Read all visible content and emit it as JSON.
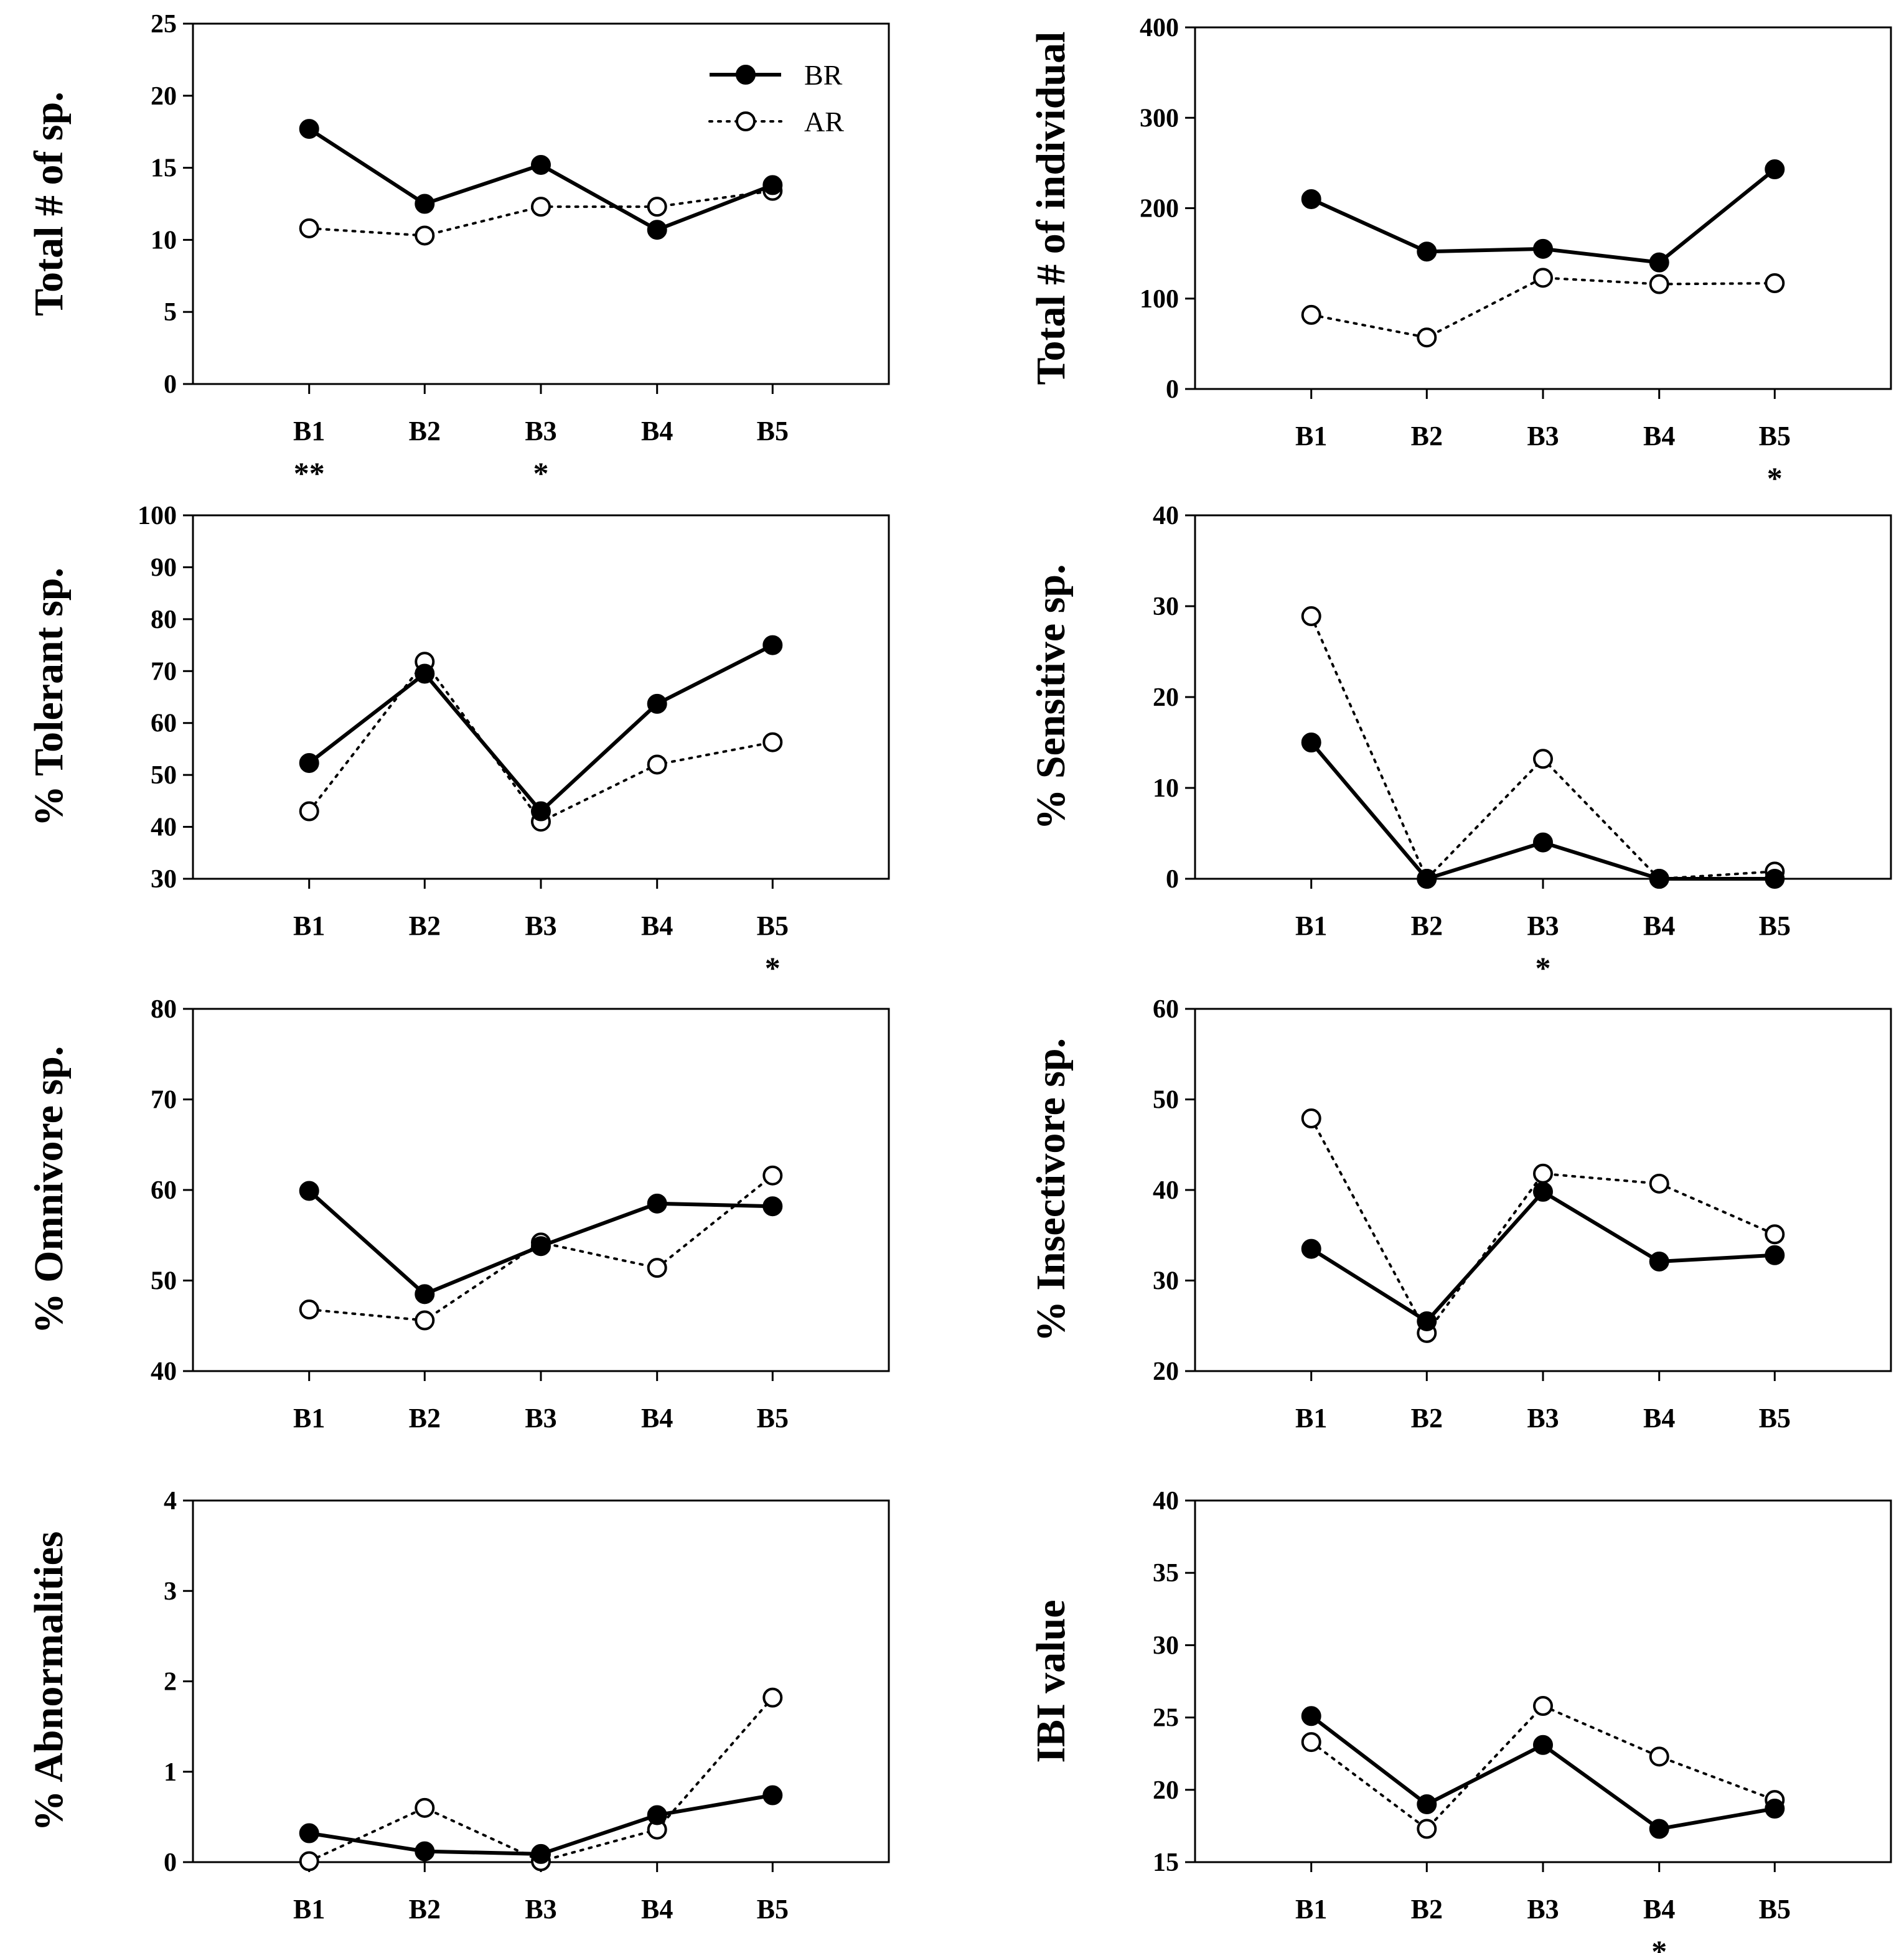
{
  "series_styles": {
    "BR": {
      "marker": "filled-circle",
      "line": "solid",
      "color": "#000000"
    },
    "AR": {
      "marker": "open-circle",
      "line": "dotted",
      "color": "#000000"
    }
  },
  "legend": {
    "items": [
      "BR",
      "AR"
    ],
    "position": "top-right of first panel"
  },
  "chart_data": [
    {
      "type": "line",
      "ylabel": "Total # of sp.",
      "categories": [
        "B1",
        "B2",
        "B3",
        "B4",
        "B5"
      ],
      "ylim": [
        0,
        25
      ],
      "yticks": [
        0,
        5,
        10,
        15,
        20,
        25
      ],
      "series": [
        {
          "name": "BR",
          "values": [
            17.7,
            12.5,
            15.2,
            10.7,
            13.8
          ]
        },
        {
          "name": "AR",
          "values": [
            10.8,
            10.3,
            12.3,
            12.3,
            13.4
          ]
        }
      ],
      "significance": [
        "**",
        "",
        "*",
        "",
        ""
      ]
    },
    {
      "type": "line",
      "ylabel": "Total # of individual",
      "categories": [
        "B1",
        "B2",
        "B3",
        "B4",
        "B5"
      ],
      "ylim": [
        0,
        400
      ],
      "yticks": [
        0,
        100,
        200,
        300,
        400
      ],
      "series": [
        {
          "name": "BR",
          "values": [
            210,
            152,
            155,
            140,
            243
          ]
        },
        {
          "name": "AR",
          "values": [
            82,
            57,
            123,
            116,
            117
          ]
        }
      ],
      "significance": [
        "",
        "",
        "",
        "",
        "*"
      ]
    },
    {
      "type": "line",
      "ylabel": "% Tolerant sp.",
      "categories": [
        "B1",
        "B2",
        "B3",
        "B4",
        "B5"
      ],
      "ylim": [
        30,
        100
      ],
      "yticks": [
        30,
        40,
        50,
        60,
        70,
        80,
        90,
        100
      ],
      "series": [
        {
          "name": "BR",
          "values": [
            52.3,
            69.5,
            43.0,
            63.7,
            75.0
          ]
        },
        {
          "name": "AR",
          "values": [
            43.0,
            71.8,
            41.0,
            52.0,
            56.3
          ]
        }
      ],
      "significance": [
        "",
        "",
        "",
        "",
        "*"
      ]
    },
    {
      "type": "line",
      "ylabel": "% Sensitive sp.",
      "categories": [
        "B1",
        "B2",
        "B3",
        "B4",
        "B5"
      ],
      "ylim": [
        0,
        40
      ],
      "yticks": [
        0,
        10,
        20,
        30,
        40
      ],
      "series": [
        {
          "name": "BR",
          "values": [
            15.0,
            0.0,
            4.0,
            0.0,
            0.0
          ]
        },
        {
          "name": "AR",
          "values": [
            28.9,
            0.0,
            13.2,
            0.0,
            0.8
          ]
        }
      ],
      "significance": [
        "",
        "",
        "*",
        "",
        ""
      ]
    },
    {
      "type": "line",
      "ylabel": "% Omnivore sp.",
      "categories": [
        "B1",
        "B2",
        "B3",
        "B4",
        "B5"
      ],
      "ylim": [
        40,
        80
      ],
      "yticks": [
        40,
        50,
        60,
        70,
        80
      ],
      "series": [
        {
          "name": "BR",
          "values": [
            59.9,
            48.5,
            53.8,
            58.5,
            58.2
          ]
        },
        {
          "name": "AR",
          "values": [
            46.8,
            45.6,
            54.2,
            51.4,
            61.6
          ]
        }
      ],
      "significance": [
        "",
        "",
        "",
        "",
        ""
      ]
    },
    {
      "type": "line",
      "ylabel": "% Insectivore sp.",
      "categories": [
        "B1",
        "B2",
        "B3",
        "B4",
        "B5"
      ],
      "ylim": [
        20,
        60
      ],
      "yticks": [
        20,
        30,
        40,
        50,
        60
      ],
      "series": [
        {
          "name": "BR",
          "values": [
            33.5,
            25.5,
            39.8,
            32.1,
            32.8
          ]
        },
        {
          "name": "AR",
          "values": [
            47.9,
            24.2,
            41.8,
            40.7,
            35.1
          ]
        }
      ],
      "significance": [
        "",
        "",
        "",
        "",
        ""
      ]
    },
    {
      "type": "line",
      "ylabel": "% Abnormalities",
      "categories": [
        "B1",
        "B2",
        "B3",
        "B4",
        "B5"
      ],
      "ylim": [
        0,
        4
      ],
      "yticks": [
        0,
        1,
        2,
        3,
        4
      ],
      "series": [
        {
          "name": "BR",
          "values": [
            0.32,
            0.12,
            0.09,
            0.52,
            0.74
          ]
        },
        {
          "name": "AR",
          "values": [
            0.01,
            0.6,
            0.01,
            0.36,
            1.82
          ]
        }
      ],
      "significance": [
        "",
        "",
        "",
        "",
        ""
      ]
    },
    {
      "type": "line",
      "ylabel": "IBI value",
      "categories": [
        "B1",
        "B2",
        "B3",
        "B4",
        "B5"
      ],
      "ylim": [
        15,
        40
      ],
      "yticks": [
        15,
        20,
        25,
        30,
        35,
        40
      ],
      "series": [
        {
          "name": "BR",
          "values": [
            25.1,
            19.0,
            23.1,
            17.3,
            18.7
          ]
        },
        {
          "name": "AR",
          "values": [
            23.3,
            17.3,
            25.8,
            22.3,
            19.3
          ]
        }
      ],
      "significance": [
        "",
        "",
        "",
        "*",
        ""
      ]
    }
  ]
}
